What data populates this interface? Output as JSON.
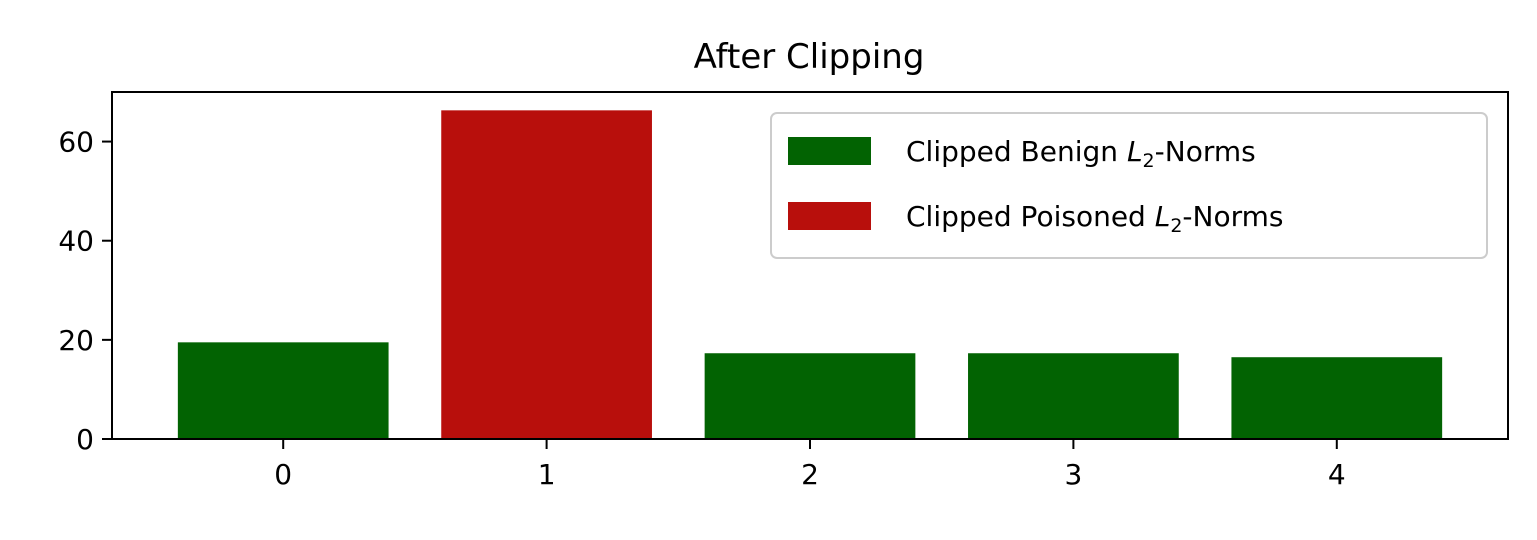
{
  "chart_data": {
    "type": "bar",
    "title": "After Clipping",
    "xlabel": "",
    "ylabel": "",
    "categories": [
      "0",
      "1",
      "2",
      "3",
      "4"
    ],
    "values": [
      19.5,
      66.3,
      17.3,
      17.3,
      16.5
    ],
    "bar_series": [
      "benign",
      "poisoned",
      "benign",
      "benign",
      "benign"
    ],
    "series": [
      {
        "key": "benign",
        "name_prefix": "Clipped Benign ",
        "name_symbol": "L",
        "name_subscript": "2",
        "name_suffix": "-Norms",
        "color": "#026302"
      },
      {
        "key": "poisoned",
        "name_prefix": "Clipped Poisoned ",
        "name_symbol": "L",
        "name_subscript": "2",
        "name_suffix": "-Norms",
        "color": "#b80f0c"
      }
    ],
    "xlim": [
      -0.65,
      4.65
    ],
    "ylim": [
      0,
      70
    ],
    "yticks": [
      0,
      20,
      40,
      60
    ],
    "grid": false,
    "legend_position": "upper-right"
  }
}
